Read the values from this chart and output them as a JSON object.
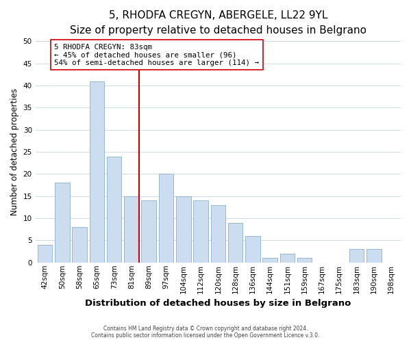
{
  "title": "5, RHODFA CREGYN, ABERGELE, LL22 9YL",
  "subtitle": "Size of property relative to detached houses in Belgrano",
  "xlabel": "Distribution of detached houses by size in Belgrano",
  "ylabel": "Number of detached properties",
  "bar_labels": [
    "42sqm",
    "50sqm",
    "58sqm",
    "65sqm",
    "73sqm",
    "81sqm",
    "89sqm",
    "97sqm",
    "104sqm",
    "112sqm",
    "120sqm",
    "128sqm",
    "136sqm",
    "144sqm",
    "151sqm",
    "159sqm",
    "167sqm",
    "175sqm",
    "183sqm",
    "190sqm",
    "198sqm"
  ],
  "bar_values": [
    4,
    18,
    8,
    41,
    24,
    15,
    14,
    20,
    15,
    14,
    13,
    9,
    6,
    1,
    2,
    1,
    0,
    0,
    3,
    3,
    0
  ],
  "bar_color": "#ccddf0",
  "bar_edge_color": "#8aafd0",
  "vline_color": "#cc0000",
  "annotation_title": "5 RHODFA CREGYN: 83sqm",
  "annotation_line1": "← 45% of detached houses are smaller (96)",
  "annotation_line2": "54% of semi-detached houses are larger (114) →",
  "annotation_box_color": "#ffffff",
  "annotation_box_edge": "#cc0000",
  "ylim": [
    0,
    50
  ],
  "yticks": [
    0,
    5,
    10,
    15,
    20,
    25,
    30,
    35,
    40,
    45,
    50
  ],
  "title_fontsize": 11,
  "subtitle_fontsize": 9.5,
  "xlabel_fontsize": 9.5,
  "ylabel_fontsize": 8.5,
  "tick_fontsize": 7.5,
  "ann_fontsize": 7.8,
  "footer_line1": "Contains HM Land Registry data © Crown copyright and database right 2024.",
  "footer_line2": "Contains public sector information licensed under the Open Government Licence v.3.0.",
  "background_color": "#ffffff",
  "grid_color": "#ccd9e8"
}
